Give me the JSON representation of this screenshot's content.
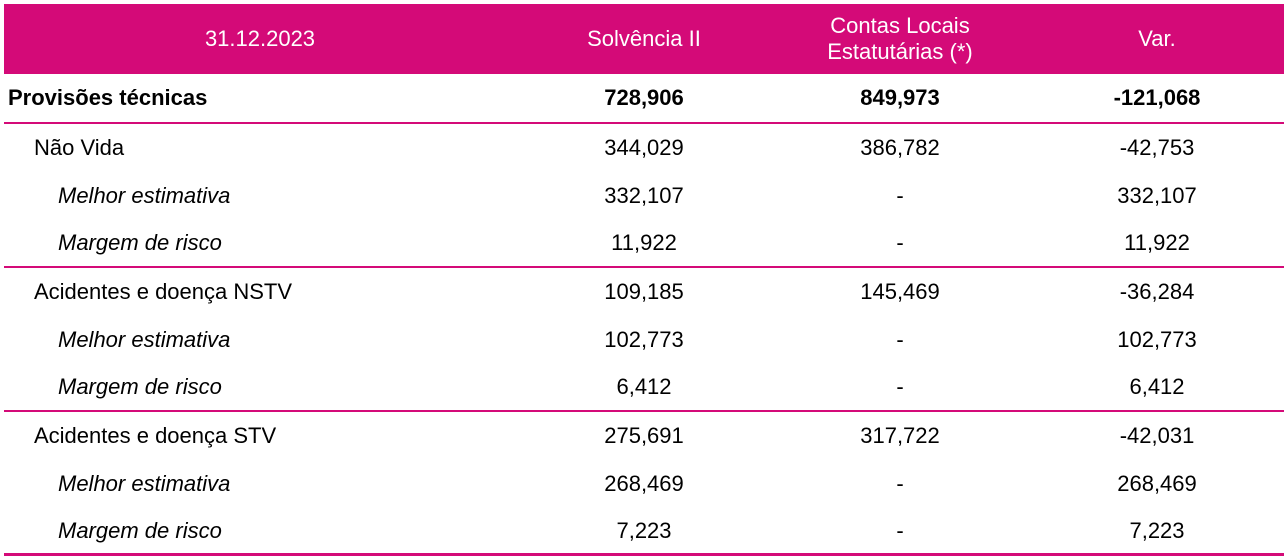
{
  "theme": {
    "accent": "#d40a78",
    "text": "#000000",
    "background": "#ffffff"
  },
  "header": {
    "date": "31.12.2023",
    "col_solvencia": "Solvência II",
    "col_contas_line1": "Contas Locais",
    "col_contas_line2": "Estatutárias (*)",
    "col_var": "Var."
  },
  "rows": [
    {
      "label": "Provisões técnicas",
      "solvencia": "728,906",
      "contas": "849,973",
      "var": "-121,068",
      "style": "bold",
      "level": 0
    },
    {
      "label": "Não Vida",
      "solvencia": "344,029",
      "contas": "386,782",
      "var": "-42,753",
      "style": "normal",
      "level": 1
    },
    {
      "label": "Melhor estimativa",
      "solvencia": "332,107",
      "contas": "-",
      "var": "332,107",
      "style": "italic",
      "level": 2
    },
    {
      "label": "Margem de risco",
      "solvencia": "11,922",
      "contas": "-",
      "var": "11,922",
      "style": "italic",
      "level": 2
    },
    {
      "label": "Acidentes e doença NSTV",
      "solvencia": "109,185",
      "contas": "145,469",
      "var": "-36,284",
      "style": "normal",
      "level": 1
    },
    {
      "label": "Melhor estimativa",
      "solvencia": "102,773",
      "contas": "-",
      "var": "102,773",
      "style": "italic",
      "level": 2
    },
    {
      "label": "Margem de risco",
      "solvencia": "6,412",
      "contas": "-",
      "var": "6,412",
      "style": "italic",
      "level": 2
    },
    {
      "label": "Acidentes e doença STV",
      "solvencia": "275,691",
      "contas": "317,722",
      "var": "-42,031",
      "style": "normal",
      "level": 1
    },
    {
      "label": "Melhor estimativa",
      "solvencia": "268,469",
      "contas": "-",
      "var": "268,469",
      "style": "italic",
      "level": 2
    },
    {
      "label": "Margem de risco",
      "solvencia": "7,223",
      "contas": "-",
      "var": "7,223",
      "style": "italic",
      "level": 2
    }
  ]
}
